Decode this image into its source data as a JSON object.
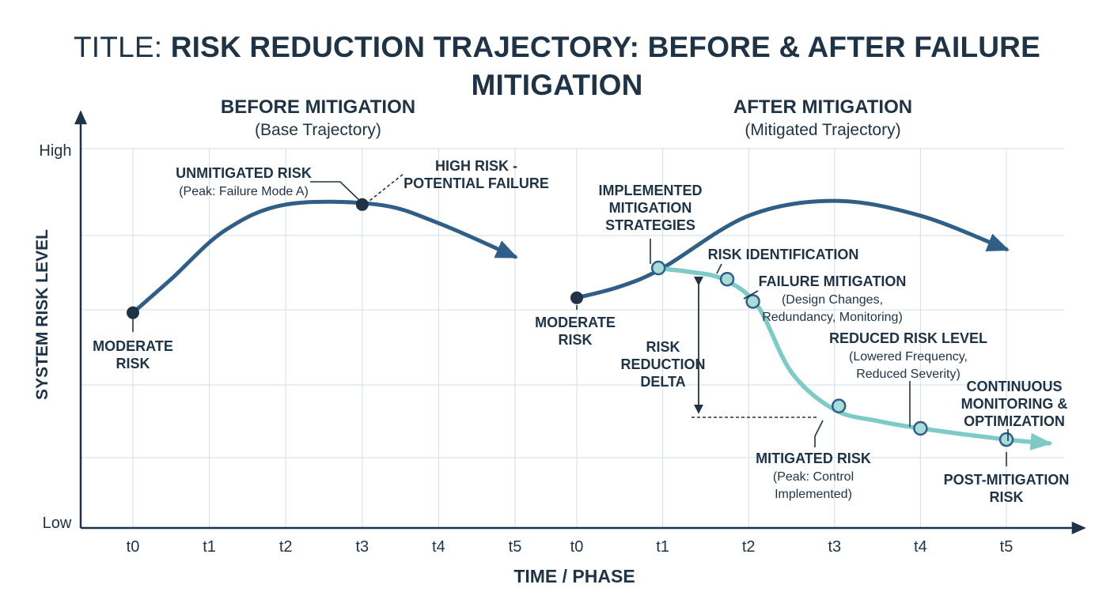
{
  "title": {
    "prefix": "TITLE:",
    "main": "RISK REDUCTION TRAJECTORY: BEFORE & AFTER FAILURE MITIGATION"
  },
  "colors": {
    "dark": "#1e3346",
    "base": "#2f5f86",
    "mitigated": "#7ecac6",
    "grid": "#d3dee6",
    "node_fill": "#a9dcd8"
  },
  "chart_data": {
    "type": "line",
    "xlabel": "TIME / PHASE",
    "ylabel": "SYSTEM RISK LEVEL",
    "y_tick_labels": [
      "High",
      "Low"
    ],
    "grid": true,
    "panels": [
      {
        "heading": "BEFORE MITIGATION",
        "subheading": "(Base Trajectory)",
        "x_ticks": [
          "t0",
          "t1",
          "t2",
          "t3",
          "t4",
          "t5"
        ]
      },
      {
        "heading": "AFTER MITIGATION",
        "subheading": "(Mitigated Trajectory)",
        "x_ticks": [
          "t0",
          "t1",
          "t2",
          "t3",
          "t4",
          "t5"
        ]
      }
    ],
    "series": [
      {
        "panel": 0,
        "style": "base",
        "points": [
          [
            0,
            0.56
          ],
          [
            0.5,
            0.65
          ],
          [
            1.2,
            0.78
          ],
          [
            2.0,
            0.85
          ],
          [
            3.2,
            0.85
          ],
          [
            4.0,
            0.8
          ],
          [
            5.0,
            0.71
          ]
        ]
      },
      {
        "panel": 1,
        "style": "base",
        "points": [
          [
            0,
            0.6
          ],
          [
            0.5,
            0.63
          ],
          [
            1.0,
            0.68
          ],
          [
            2.0,
            0.82
          ],
          [
            3.0,
            0.86
          ],
          [
            4.0,
            0.82
          ],
          [
            5.0,
            0.73
          ]
        ]
      },
      {
        "panel": 1,
        "style": "mitigated",
        "points": [
          [
            0.9,
            0.68
          ],
          [
            1.3,
            0.67
          ],
          [
            1.7,
            0.65
          ],
          [
            2.1,
            0.58
          ],
          [
            2.5,
            0.4
          ],
          [
            3.0,
            0.3
          ],
          [
            3.5,
            0.27
          ],
          [
            4.0,
            0.25
          ],
          [
            5.0,
            0.22
          ],
          [
            5.5,
            0.21
          ]
        ]
      }
    ],
    "markers": [
      {
        "panel": 0,
        "x": 0,
        "y": 0.56,
        "style": "dark",
        "name": "moderate-risk-marker-before"
      },
      {
        "panel": 0,
        "x": 3.0,
        "y": 0.85,
        "style": "dark",
        "name": "unmitigated-risk-peak-marker"
      },
      {
        "panel": 1,
        "x": 0,
        "y": 0.6,
        "style": "dark",
        "name": "moderate-risk-marker-after"
      },
      {
        "panel": 1,
        "x": 0.95,
        "y": 0.68,
        "style": "light",
        "name": "implemented-mitigation-marker"
      },
      {
        "panel": 1,
        "x": 1.75,
        "y": 0.65,
        "style": "light",
        "name": "risk-identification-marker"
      },
      {
        "panel": 1,
        "x": 2.05,
        "y": 0.59,
        "style": "light",
        "name": "failure-mitigation-marker"
      },
      {
        "panel": 1,
        "x": 3.05,
        "y": 0.31,
        "style": "light",
        "name": "mitigated-risk-marker"
      },
      {
        "panel": 1,
        "x": 4.0,
        "y": 0.25,
        "style": "light",
        "name": "reduced-risk-level-marker"
      },
      {
        "panel": 1,
        "x": 5.0,
        "y": 0.22,
        "style": "light",
        "name": "post-mitigation-risk-marker"
      }
    ],
    "annotations": [
      {
        "name": "annotation-moderate-risk-before",
        "lines": [
          "MODERATE",
          "RISK"
        ],
        "bold": true
      },
      {
        "name": "annotation-unmitigated-risk",
        "lines": [
          "UNMITIGATED RISK",
          "(Peak: Failure Mode A)"
        ],
        "bold": true
      },
      {
        "name": "annotation-high-risk",
        "lines": [
          "HIGH RISK -",
          "POTENTIAL FAILURE"
        ],
        "bold": true
      },
      {
        "name": "annotation-implemented-mitigation",
        "lines": [
          "IMPLEMENTED",
          "MITIGATION",
          "STRATEGIES"
        ],
        "bold": true
      },
      {
        "name": "annotation-risk-identification",
        "lines": [
          "RISK IDENTIFICATION"
        ],
        "bold": true
      },
      {
        "name": "annotation-failure-mitigation",
        "lines": [
          "FAILURE MITIGATION",
          "(Design Changes,",
          "Redundancy, Monitoring)"
        ],
        "bold": true
      },
      {
        "name": "annotation-moderate-risk-after",
        "lines": [
          "MODERATE",
          "RISK"
        ],
        "bold": true
      },
      {
        "name": "annotation-risk-reduction-delta",
        "lines": [
          "RISK",
          "REDUCTION",
          "DELTA"
        ],
        "bold": true
      },
      {
        "name": "annotation-reduced-risk-level",
        "lines": [
          "REDUCED RISK LEVEL",
          "(Lowered Frequency,",
          "Reduced Severity)"
        ],
        "bold": true
      },
      {
        "name": "annotation-continuous-monitoring",
        "lines": [
          "CONTINUOUS",
          "MONITORING &",
          "OPTIMIZATION"
        ],
        "bold": true
      },
      {
        "name": "annotation-mitigated-risk",
        "lines": [
          "MITIGATED RISK",
          "(Peak: Control",
          "Implemented)"
        ],
        "bold": true
      },
      {
        "name": "annotation-post-mitigation-risk",
        "lines": [
          "POST-MITIGATION",
          "RISK"
        ],
        "bold": true
      }
    ]
  }
}
